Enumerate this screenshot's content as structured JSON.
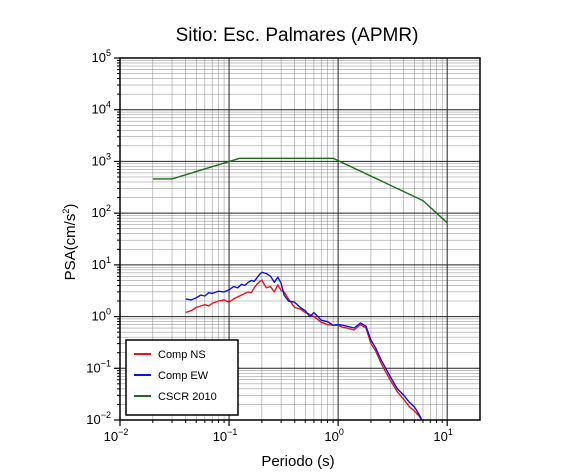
{
  "chart_data": {
    "type": "line",
    "title": "Sitio: Esc. Palmares (APMR)",
    "xlabel": "Periodo (s)",
    "ylabel": "PSA(cm/s2)",
    "ylabel_base": "PSA(cm/s",
    "ylabel_sup": "2",
    "ylabel_end": ")",
    "xscale": "log",
    "yscale": "log",
    "xlim": [
      0.01,
      20
    ],
    "ylim": [
      0.01,
      100000
    ],
    "x_ticks": [
      {
        "value": 0.01,
        "base": "10",
        "exp": "−2"
      },
      {
        "value": 0.1,
        "base": "10",
        "exp": "−1"
      },
      {
        "value": 1,
        "base": "10",
        "exp": "0"
      },
      {
        "value": 10,
        "base": "10",
        "exp": "1"
      }
    ],
    "y_ticks": [
      {
        "value": 0.01,
        "base": "10",
        "exp": "−2"
      },
      {
        "value": 0.1,
        "base": "10",
        "exp": "−1"
      },
      {
        "value": 1,
        "base": "10",
        "exp": "0"
      },
      {
        "value": 10,
        "base": "10",
        "exp": "1"
      },
      {
        "value": 100,
        "base": "10",
        "exp": "2"
      },
      {
        "value": 1000,
        "base": "10",
        "exp": "3"
      },
      {
        "value": 10000,
        "base": "10",
        "exp": "4"
      },
      {
        "value": 100000,
        "base": "10",
        "exp": "5"
      }
    ],
    "grid": true,
    "legend_position": "bottom-left",
    "series": [
      {
        "name": "Comp NS",
        "color": "#e8141a",
        "x": [
          0.04,
          0.045,
          0.05,
          0.055,
          0.06,
          0.065,
          0.07,
          0.08,
          0.09,
          0.1,
          0.11,
          0.12,
          0.13,
          0.14,
          0.15,
          0.16,
          0.17,
          0.18,
          0.19,
          0.2,
          0.21,
          0.22,
          0.24,
          0.26,
          0.28,
          0.3,
          0.32,
          0.35,
          0.4,
          0.45,
          0.5,
          0.55,
          0.6,
          0.7,
          0.8,
          0.9,
          1.0,
          1.1,
          1.2,
          1.4,
          1.6,
          1.8,
          2.0,
          2.2,
          2.5,
          3.0,
          3.5,
          4.0,
          4.5,
          5.0,
          5.5,
          6.0
        ],
        "y": [
          1.2,
          1.3,
          1.5,
          1.6,
          1.7,
          1.6,
          1.8,
          2.0,
          2.1,
          1.9,
          2.2,
          2.4,
          2.6,
          2.8,
          3.0,
          2.9,
          3.6,
          4.2,
          4.7,
          5.1,
          4.2,
          3.6,
          3.8,
          3.0,
          4.1,
          3.2,
          3.0,
          2.2,
          1.5,
          1.4,
          1.2,
          1.1,
          1.0,
          0.78,
          0.7,
          0.68,
          0.68,
          0.62,
          0.6,
          0.55,
          0.7,
          0.6,
          0.3,
          0.22,
          0.12,
          0.06,
          0.035,
          0.025,
          0.018,
          0.015,
          0.012,
          0.009
        ]
      },
      {
        "name": "Comp EW",
        "color": "#0a14e6",
        "x": [
          0.04,
          0.045,
          0.05,
          0.055,
          0.06,
          0.065,
          0.07,
          0.08,
          0.09,
          0.1,
          0.11,
          0.12,
          0.13,
          0.14,
          0.15,
          0.16,
          0.17,
          0.18,
          0.19,
          0.2,
          0.21,
          0.22,
          0.24,
          0.26,
          0.28,
          0.3,
          0.32,
          0.35,
          0.4,
          0.45,
          0.5,
          0.55,
          0.6,
          0.7,
          0.8,
          0.9,
          1.0,
          1.1,
          1.2,
          1.4,
          1.6,
          1.8,
          2.0,
          2.2,
          2.5,
          3.0,
          3.5,
          4.0,
          4.5,
          5.0,
          5.5,
          6.0
        ],
        "y": [
          2.2,
          2.1,
          2.3,
          2.6,
          2.5,
          2.9,
          2.8,
          3.1,
          3.0,
          3.3,
          3.8,
          3.6,
          4.2,
          4.0,
          4.6,
          5.0,
          4.8,
          5.6,
          6.5,
          7.2,
          7.0,
          6.8,
          6.0,
          4.6,
          5.8,
          4.4,
          2.6,
          2.0,
          1.9,
          1.5,
          1.3,
          1.0,
          1.2,
          0.85,
          0.8,
          0.68,
          0.7,
          0.68,
          0.65,
          0.6,
          0.75,
          0.65,
          0.35,
          0.25,
          0.14,
          0.07,
          0.04,
          0.03,
          0.022,
          0.018,
          0.013,
          0.009
        ]
      },
      {
        "name": "CSCR 2010",
        "color": "#1e6e1e",
        "x": [
          0.02,
          0.03,
          0.125,
          0.9,
          6.0,
          10.0
        ],
        "y": [
          460,
          460,
          1150,
          1150,
          175,
          65
        ]
      }
    ]
  }
}
